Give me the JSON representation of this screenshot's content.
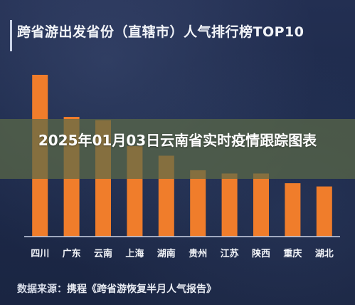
{
  "chart_data": {
    "type": "bar",
    "title": "跨省游出发省份（直辖市）人气排行榜TOP10",
    "categories": [
      "四川",
      "广东",
      "云南",
      "上海",
      "湖南",
      "贵州",
      "江苏",
      "陕西",
      "重庆",
      "湖北"
    ],
    "values": [
      100,
      74,
      72,
      56,
      50,
      41,
      39,
      39,
      33,
      31
    ],
    "ylim": [
      0,
      100
    ],
    "grid": false,
    "colors": {
      "bar": "#f07d2b",
      "background": "#1d2a4b",
      "axis": "#c9d2e6",
      "label": "#f2f4f8"
    }
  },
  "overlay": {
    "text": "2025年01月03日云南省实时疫情跟踪图表"
  },
  "source": {
    "prefix": "数据来源：",
    "text": "携程《跨省游恢复半月人气报告》"
  }
}
